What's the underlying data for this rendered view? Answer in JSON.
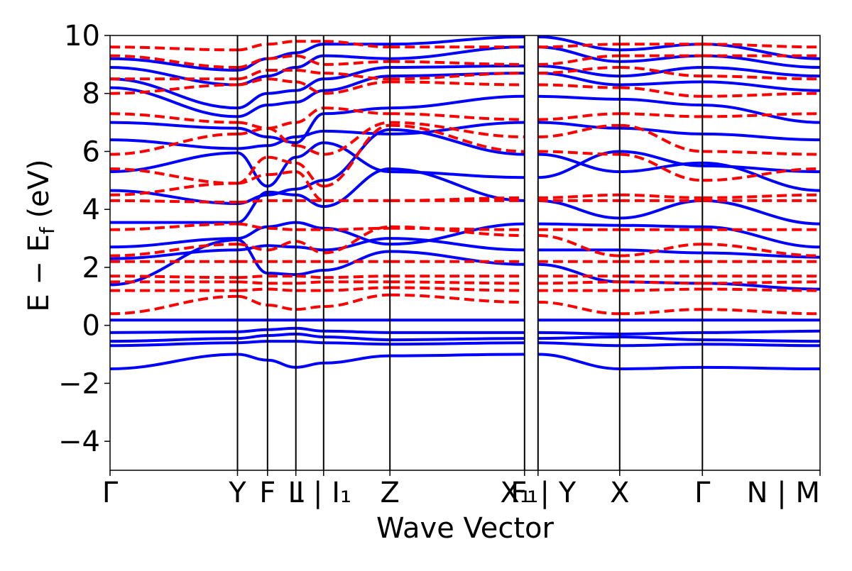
{
  "chart_data": {
    "type": "line",
    "title": "",
    "xlabel": "Wave Vector",
    "ylabel": "E − E",
    "ylabel_sub": "f",
    "ylabel_unit": " (eV)",
    "ylim": [
      -5,
      10
    ],
    "y_ticks": [
      -4,
      -2,
      0,
      2,
      4,
      6,
      8,
      10
    ],
    "y_tick_labels": [
      "−4",
      "−2",
      "0",
      "2",
      "4",
      "6",
      "8",
      "10"
    ],
    "x_range": [
      0,
      1
    ],
    "high_symmetry_points": [
      {
        "pos": 0.0,
        "label": "Γ"
      },
      {
        "pos": 0.1795,
        "label": "Y"
      },
      {
        "pos": 0.2218,
        "label": "F"
      },
      {
        "pos": 0.2617,
        "label": "L"
      },
      {
        "pos": 0.3008,
        "label": "I | I₁"
      },
      {
        "pos": 0.3942,
        "label": "Z"
      },
      {
        "pos": 0.5838,
        "label": "F₁"
      },
      {
        "pos": 0.6028,
        "label": "X₁ | Y"
      },
      {
        "pos": 0.7178,
        "label": "X"
      },
      {
        "pos": 0.8343,
        "label": "Γ"
      },
      {
        "pos": 1.0,
        "label": "N | M"
      }
    ],
    "tick_label_groups": [
      {
        "text": "Γ",
        "pos": 0.0
      },
      {
        "text": "Y",
        "pos": 0.1795
      },
      {
        "text": "F",
        "pos": 0.2218
      },
      {
        "text": "L",
        "pos": 0.2617
      },
      {
        "text": "I | I₁",
        "pos": 0.3008
      },
      {
        "text": "Z",
        "pos": 0.3942
      },
      {
        "text": "F₁",
        "pos": 0.5838
      },
      {
        "text": "X₁ | Y",
        "pos": 0.6028
      },
      {
        "text": "X",
        "pos": 0.7178
      },
      {
        "text": "Γ",
        "pos": 0.8343
      },
      {
        "text": "N | M",
        "pos": 1.0
      }
    ],
    "segments": [
      {
        "from": 0.0,
        "to": 0.1795
      },
      {
        "from": 0.1795,
        "to": 0.2218
      },
      {
        "from": 0.2218,
        "to": 0.2617
      },
      {
        "from": 0.2617,
        "to": 0.3008
      },
      {
        "from": 0.3008,
        "to": 0.3942
      },
      {
        "from": 0.3942,
        "to": 0.5838
      },
      {
        "from": 0.6028,
        "to": 0.7178
      },
      {
        "from": 0.7178,
        "to": 0.8343
      },
      {
        "from": 0.8343,
        "to": 1.0
      }
    ],
    "series": [
      {
        "color": "#0000ff",
        "style": "solid",
        "bands": [
          [
            0.18,
            0.18,
            0.18,
            0.18,
            0.18,
            0.18,
            0.18,
            0.18,
            0.18,
            0.18
          ],
          [
            -0.25,
            -0.22,
            -0.15,
            -0.1,
            -0.2,
            -0.25,
            -0.25,
            -0.3,
            -0.25,
            -0.2
          ],
          [
            -0.55,
            -0.45,
            -0.35,
            -0.3,
            -0.4,
            -0.5,
            -0.45,
            -0.4,
            -0.5,
            -0.55
          ],
          [
            -0.7,
            -0.6,
            -0.55,
            -0.55,
            -0.6,
            -0.65,
            -0.6,
            -0.7,
            -0.65,
            -0.7
          ],
          [
            -1.5,
            -1.0,
            -1.2,
            -1.45,
            -1.3,
            -1.05,
            -1.0,
            -1.5,
            -1.45,
            -1.5
          ],
          [
            1.4,
            2.95,
            1.8,
            1.75,
            1.9,
            2.55,
            2.1,
            1.5,
            1.45,
            1.25
          ],
          [
            2.3,
            2.6,
            2.75,
            2.7,
            2.6,
            3.0,
            2.6,
            2.6,
            2.5,
            2.35
          ],
          [
            2.7,
            3.0,
            3.4,
            3.55,
            3.35,
            2.8,
            3.5,
            3.45,
            3.4,
            2.7
          ],
          [
            3.55,
            3.55,
            4.6,
            4.5,
            4.1,
            5.4,
            4.3,
            3.7,
            4.3,
            3.5
          ],
          [
            4.65,
            4.2,
            4.5,
            4.7,
            5.0,
            6.75,
            5.9,
            5.3,
            5.6,
            4.65
          ],
          [
            5.3,
            5.95,
            4.8,
            5.8,
            6.3,
            5.3,
            5.1,
            6.0,
            5.5,
            5.3
          ],
          [
            6.4,
            6.1,
            6.2,
            6.5,
            6.7,
            6.6,
            7.0,
            6.8,
            6.6,
            6.4
          ],
          [
            7.0,
            6.8,
            6.5,
            6.3,
            7.3,
            7.5,
            7.9,
            7.8,
            7.6,
            7.0
          ],
          [
            8.2,
            7.2,
            7.6,
            7.7,
            8.1,
            8.6,
            8.7,
            8.3,
            8.4,
            8.1
          ],
          [
            8.5,
            7.5,
            8.0,
            8.1,
            8.5,
            8.9,
            8.95,
            8.6,
            8.9,
            8.6
          ],
          [
            8.9,
            8.3,
            8.6,
            8.9,
            9.3,
            9.2,
            9.6,
            9.1,
            9.3,
            8.9
          ],
          [
            9.2,
            8.8,
            9.2,
            9.4,
            9.7,
            9.7,
            9.95,
            9.5,
            9.7,
            9.2
          ]
        ]
      },
      {
        "color": "#ff0000",
        "style": "dashed",
        "bands": [
          [
            0.4,
            1.0,
            0.7,
            0.55,
            0.65,
            1.05,
            0.8,
            0.4,
            0.55,
            0.4
          ],
          [
            1.2,
            1.2,
            1.25,
            1.2,
            1.2,
            1.3,
            1.2,
            1.2,
            1.25,
            1.2
          ],
          [
            1.5,
            1.5,
            1.45,
            1.45,
            1.5,
            1.5,
            1.45,
            1.5,
            1.45,
            1.5
          ],
          [
            1.7,
            1.65,
            1.7,
            1.7,
            1.65,
            1.7,
            1.7,
            1.7,
            1.7,
            1.7
          ],
          [
            2.2,
            2.2,
            2.2,
            2.2,
            2.2,
            2.2,
            2.2,
            2.2,
            2.2,
            2.2
          ],
          [
            2.4,
            2.8,
            2.6,
            2.9,
            2.5,
            3.4,
            3.1,
            2.4,
            2.8,
            2.4
          ],
          [
            3.3,
            3.5,
            3.35,
            3.3,
            3.3,
            3.35,
            3.3,
            3.3,
            3.3,
            3.3
          ],
          [
            4.3,
            4.25,
            4.3,
            4.3,
            4.3,
            4.3,
            4.3,
            4.3,
            4.3,
            4.3
          ],
          [
            4.5,
            4.9,
            5.2,
            5.3,
            4.3,
            4.3,
            4.4,
            4.5,
            4.4,
            4.5
          ],
          [
            5.4,
            4.9,
            5.8,
            5.6,
            4.8,
            6.9,
            6.0,
            5.9,
            5.0,
            5.4
          ],
          [
            5.9,
            6.6,
            6.8,
            6.2,
            5.9,
            7.0,
            6.5,
            6.9,
            6.0,
            5.9
          ],
          [
            7.3,
            7.0,
            6.8,
            7.0,
            7.5,
            7.3,
            7.1,
            7.3,
            7.2,
            7.3
          ],
          [
            8.0,
            8.3,
            8.5,
            8.4,
            8.0,
            8.4,
            8.3,
            8.2,
            7.9,
            8.0
          ],
          [
            8.5,
            8.5,
            8.8,
            8.8,
            8.7,
            8.5,
            8.7,
            8.9,
            8.6,
            8.5
          ],
          [
            9.3,
            8.9,
            9.2,
            9.3,
            9.0,
            9.1,
            9.0,
            9.3,
            9.3,
            9.3
          ],
          [
            9.6,
            9.5,
            9.7,
            9.8,
            9.8,
            9.6,
            9.6,
            9.7,
            9.7,
            9.6
          ]
        ]
      }
    ],
    "grid": false,
    "legend": false
  }
}
